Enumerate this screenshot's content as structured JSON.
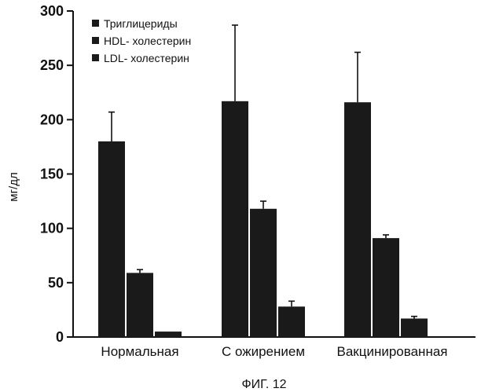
{
  "chart_data": {
    "type": "bar",
    "categories": [
      "Нормальная",
      "С ожирением",
      "Вакцинированная"
    ],
    "series": [
      {
        "name": "Триглицериды",
        "values": [
          180,
          217,
          216
        ],
        "errors": [
          27,
          70,
          46
        ],
        "color": "#1a1a1a"
      },
      {
        "name": "HDL- холестерин",
        "values": [
          59,
          118,
          91
        ],
        "errors": [
          3,
          7,
          3
        ],
        "color": "#1a1a1a"
      },
      {
        "name": "LDL- холестерин",
        "values": [
          5,
          28,
          17
        ],
        "errors": [
          0,
          5,
          2
        ],
        "color": "#1a1a1a"
      }
    ],
    "ylabel": "мг/дл",
    "xlabel": "",
    "ylim": [
      0,
      300
    ],
    "yticks": [
      0,
      50,
      100,
      150,
      200,
      250,
      300
    ],
    "legend_position": "top-left",
    "caption": "ФИГ. 12",
    "grid": false
  }
}
